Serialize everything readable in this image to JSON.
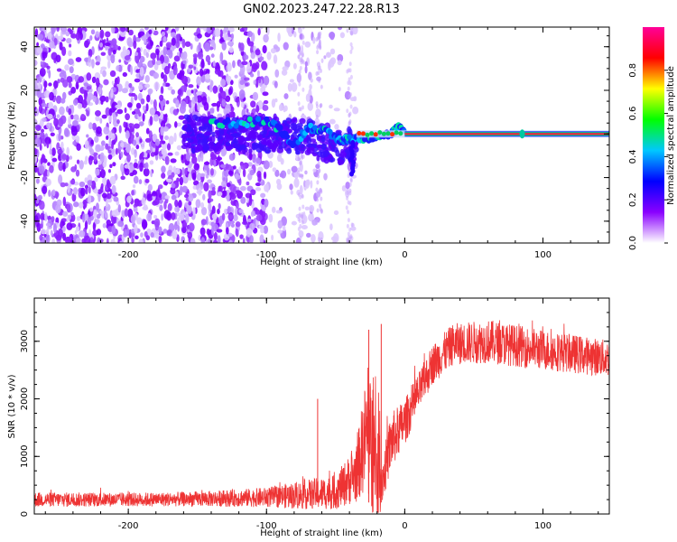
{
  "title": "GN02.2023.247.22.28.R13",
  "chart_data": [
    {
      "type": "heatmap",
      "xlabel": "Height of straight line (km)",
      "ylabel": "Frequency (Hz)",
      "xlim": [
        -268,
        148
      ],
      "ylim": [
        -50,
        49
      ],
      "xticks": [
        -200,
        -100,
        0,
        100
      ],
      "yticks": [
        -40,
        -20,
        0,
        20,
        40
      ],
      "colorbar": {
        "label": "Normalized spectral amplitude",
        "range": [
          0.0,
          1.0
        ],
        "ticks": [
          "0.0",
          "0.2",
          "0.4",
          "0.6",
          "0.8"
        ],
        "colormap": [
          "#ffffff",
          "#8a00ff",
          "#0000ff",
          "#00c8ff",
          "#00ff00",
          "#ffff00",
          "#ff0000",
          "#ff0099"
        ]
      },
      "features": {
        "noise_region_km": [
          -268,
          -35
        ],
        "stable_tone_start_km": 0,
        "stable_tone_freq_hz": 0,
        "drift_track": [
          [
            -140,
            5
          ],
          [
            -120,
            5
          ],
          [
            -100,
            6
          ],
          [
            -90,
            2
          ],
          [
            -80,
            -5
          ],
          [
            -70,
            3
          ],
          [
            -60,
            2
          ],
          [
            -50,
            -2
          ],
          [
            -45,
            -3
          ],
          [
            -40,
            -2
          ],
          [
            -30,
            -2
          ],
          [
            -20,
            -1
          ],
          [
            -10,
            0
          ],
          [
            -5,
            3
          ],
          [
            0,
            1
          ]
        ]
      }
    },
    {
      "type": "line",
      "xlabel": "Height of straight line (km)",
      "ylabel": "SNR (10 * v/v)",
      "xlim": [
        -268,
        148
      ],
      "ylim": [
        0,
        3750
      ],
      "xticks": [
        -200,
        -100,
        0,
        100
      ],
      "yticks": [
        0,
        1000,
        2000,
        3000
      ],
      "color": "#ee3333",
      "envelope": [
        {
          "x": -268,
          "base": 250,
          "amp": 130
        },
        {
          "x": -200,
          "base": 250,
          "amp": 120
        },
        {
          "x": -150,
          "base": 260,
          "amp": 130
        },
        {
          "x": -100,
          "base": 290,
          "amp": 170
        },
        {
          "x": -75,
          "base": 330,
          "amp": 250
        },
        {
          "x": -50,
          "base": 380,
          "amp": 300
        },
        {
          "x": -35,
          "base": 700,
          "amp": 500
        },
        {
          "x": -28,
          "base": 1400,
          "amp": 1000
        },
        {
          "x": -22,
          "base": 900,
          "amp": 1400
        },
        {
          "x": -16,
          "base": 600,
          "amp": 400
        },
        {
          "x": -10,
          "base": 1250,
          "amp": 500
        },
        {
          "x": 0,
          "base": 1600,
          "amp": 400
        },
        {
          "x": 10,
          "base": 2100,
          "amp": 350
        },
        {
          "x": 20,
          "base": 2600,
          "amp": 350
        },
        {
          "x": 35,
          "base": 2950,
          "amp": 360
        },
        {
          "x": 60,
          "base": 3000,
          "amp": 380
        },
        {
          "x": 100,
          "base": 2850,
          "amp": 350
        },
        {
          "x": 148,
          "base": 2700,
          "amp": 320
        }
      ],
      "spikes": [
        [
          -63,
          2000
        ],
        [
          -26,
          3200
        ],
        [
          -17,
          3300
        ]
      ]
    }
  ]
}
